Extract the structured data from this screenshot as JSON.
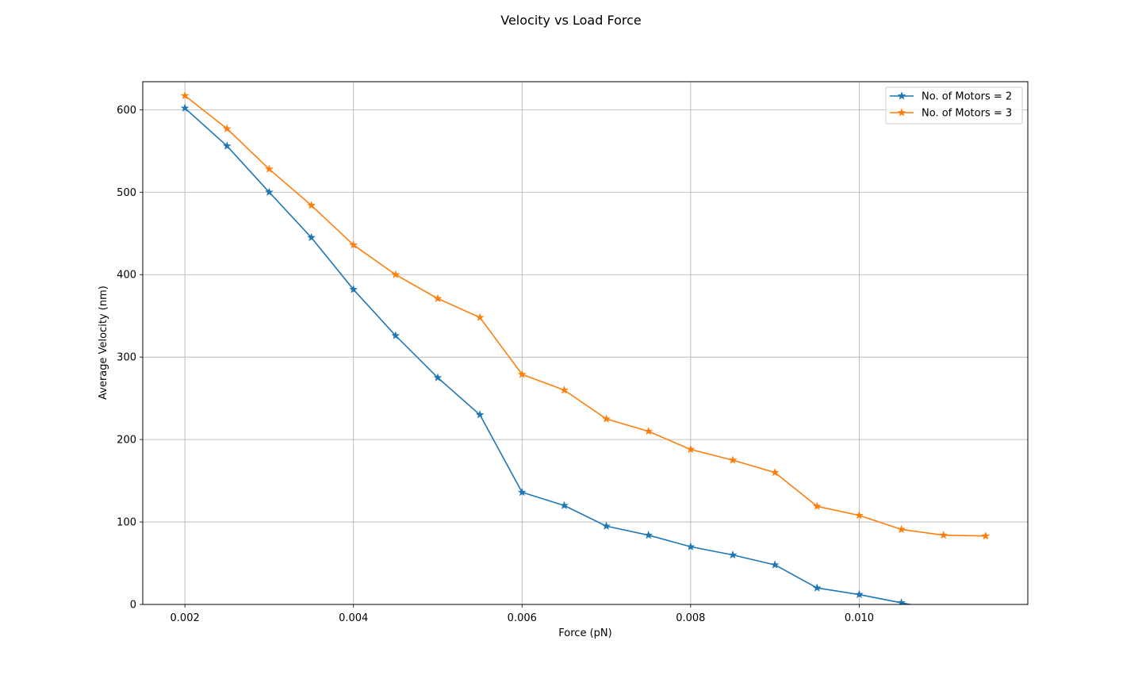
{
  "chart_data": {
    "type": "line",
    "title": "Velocity vs Load Force",
    "xlabel": "Force (pN)",
    "ylabel": "Average Velocity (nm)",
    "xlim": [
      0.0015,
      0.012
    ],
    "ylim": [
      0,
      634
    ],
    "x_ticks": [
      0.002,
      0.004,
      0.006,
      0.008,
      0.01
    ],
    "x_tick_labels": [
      "0.002",
      "0.004",
      "0.006",
      "0.008",
      "0.010"
    ],
    "y_ticks": [
      0,
      100,
      200,
      300,
      400,
      500,
      600
    ],
    "y_tick_labels": [
      "0",
      "100",
      "200",
      "300",
      "400",
      "500",
      "600"
    ],
    "grid": true,
    "legend_position": "top-right",
    "marker": "star",
    "series": [
      {
        "name": "No. of Motors = 2",
        "color": "#1f77b4",
        "x": [
          0.002,
          0.0025,
          0.003,
          0.0035,
          0.004,
          0.0045,
          0.005,
          0.0055,
          0.006,
          0.0065,
          0.007,
          0.0075,
          0.008,
          0.0085,
          0.009,
          0.0095,
          0.01,
          0.0105,
          0.011,
          0.0115
        ],
        "values": [
          602,
          556,
          500,
          445,
          382,
          326,
          275,
          230,
          136,
          120,
          95,
          84,
          70,
          60,
          48,
          20,
          12,
          2,
          -8,
          -12
        ]
      },
      {
        "name": "No. of Motors = 3",
        "color": "#ff7f0e",
        "x": [
          0.002,
          0.0025,
          0.003,
          0.0035,
          0.004,
          0.0045,
          0.005,
          0.0055,
          0.006,
          0.0065,
          0.007,
          0.0075,
          0.008,
          0.0085,
          0.009,
          0.0095,
          0.01,
          0.0105,
          0.011,
          0.0115
        ],
        "values": [
          617,
          577,
          528,
          484,
          436,
          400,
          371,
          348,
          279,
          260,
          225,
          210,
          188,
          175,
          160,
          119,
          108,
          91,
          84,
          83
        ]
      }
    ]
  }
}
